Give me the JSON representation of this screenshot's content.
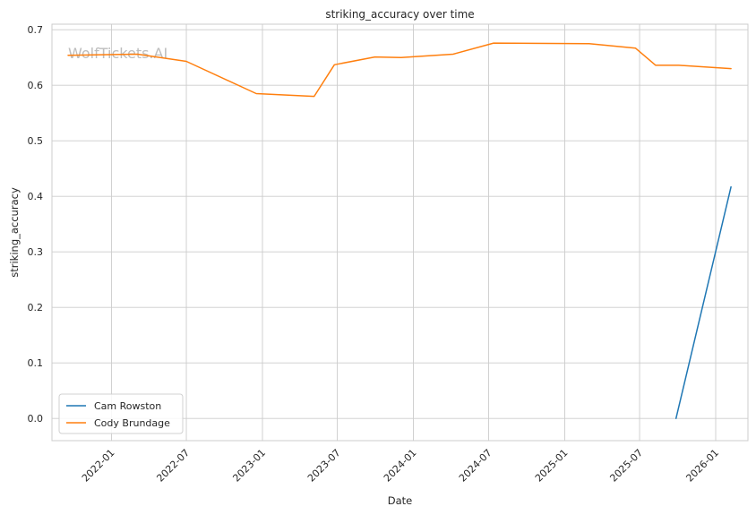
{
  "chart_data": {
    "type": "line",
    "title": "striking_accuracy over time",
    "xlabel": "Date",
    "ylabel": "striking_accuracy",
    "watermark": "WolfTickets.AI",
    "xlim": [
      "2021-08-10",
      "2026-03-20"
    ],
    "ylim": [
      -0.04,
      0.71
    ],
    "x_ticks": [
      "2022-01",
      "2022-07",
      "2023-01",
      "2023-07",
      "2024-01",
      "2024-07",
      "2025-01",
      "2025-07",
      "2026-01"
    ],
    "y_ticks": [
      "0.0",
      "0.1",
      "0.2",
      "0.3",
      "0.4",
      "0.5",
      "0.6",
      "0.7"
    ],
    "grid": true,
    "legend_position": "lower-left",
    "series": [
      {
        "name": "Cam Rowston",
        "color": "#1f77b4",
        "points": [
          {
            "x": "2025-09-27",
            "y": 0.0
          },
          {
            "x": "2026-02-07",
            "y": 0.417
          }
        ]
      },
      {
        "name": "Cody Brundage",
        "color": "#ff7f0e",
        "points": [
          {
            "x": "2021-09-18",
            "y": 0.654
          },
          {
            "x": "2022-03-05",
            "y": 0.656
          },
          {
            "x": "2022-07-01",
            "y": 0.643
          },
          {
            "x": "2022-12-17",
            "y": 0.585
          },
          {
            "x": "2023-05-06",
            "y": 0.58
          },
          {
            "x": "2023-06-24",
            "y": 0.637
          },
          {
            "x": "2023-09-30",
            "y": 0.651
          },
          {
            "x": "2023-12-02",
            "y": 0.65
          },
          {
            "x": "2024-04-06",
            "y": 0.656
          },
          {
            "x": "2024-07-13",
            "y": 0.676
          },
          {
            "x": "2025-03-01",
            "y": 0.675
          },
          {
            "x": "2025-06-21",
            "y": 0.667
          },
          {
            "x": "2025-08-09",
            "y": 0.636
          },
          {
            "x": "2025-10-04",
            "y": 0.636
          },
          {
            "x": "2026-02-07",
            "y": 0.63
          }
        ]
      }
    ]
  }
}
